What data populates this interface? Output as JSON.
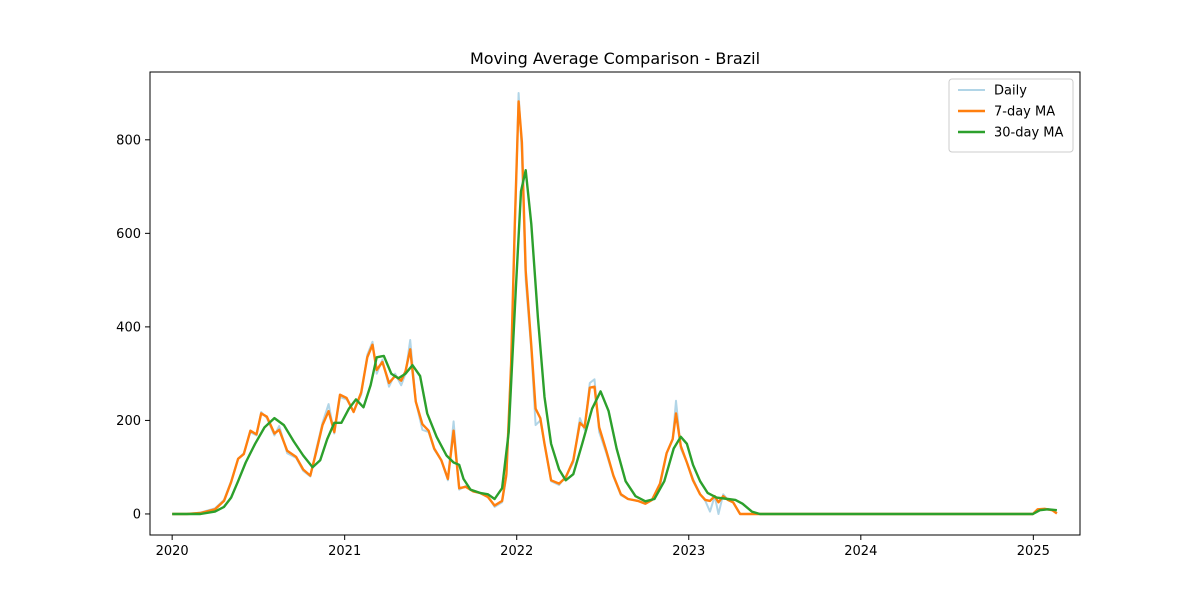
{
  "chart_data": {
    "type": "line",
    "title": "Moving Average Comparison - Brazil",
    "xlabel": "",
    "ylabel": "",
    "x_axis": {
      "ticks": [
        "2020",
        "2021",
        "2022",
        "2023",
        "2024",
        "2025"
      ],
      "range": [
        "2019-11-15",
        "2025-04-10"
      ]
    },
    "y_axis": {
      "ticks": [
        0,
        200,
        400,
        600,
        800
      ],
      "range": [
        -45,
        945
      ]
    },
    "grid": false,
    "legend": {
      "placement": "top-right",
      "entries": [
        "Daily",
        "7-day MA",
        "30-day MA"
      ]
    },
    "series": [
      {
        "name": "Daily",
        "color": "#9ecae1",
        "points": [
          [
            "2020-01-01",
            0
          ],
          [
            "2020-02-01",
            0
          ],
          [
            "2020-03-01",
            3
          ],
          [
            "2020-04-01",
            12
          ],
          [
            "2020-04-20",
            30
          ],
          [
            "2020-05-05",
            70
          ],
          [
            "2020-05-20",
            118
          ],
          [
            "2020-06-01",
            130
          ],
          [
            "2020-06-15",
            175
          ],
          [
            "2020-06-28",
            168
          ],
          [
            "2020-07-08",
            218
          ],
          [
            "2020-07-20",
            205
          ],
          [
            "2020-08-05",
            168
          ],
          [
            "2020-08-15",
            188
          ],
          [
            "2020-09-01",
            130
          ],
          [
            "2020-09-20",
            120
          ],
          [
            "2020-10-05",
            92
          ],
          [
            "2020-10-20",
            80
          ],
          [
            "2020-11-01",
            135
          ],
          [
            "2020-11-15",
            195
          ],
          [
            "2020-11-28",
            235
          ],
          [
            "2020-12-10",
            172
          ],
          [
            "2020-12-22",
            250
          ],
          [
            "2021-01-05",
            245
          ],
          [
            "2021-01-20",
            220
          ],
          [
            "2021-02-05",
            255
          ],
          [
            "2021-02-18",
            340
          ],
          [
            "2021-03-01",
            368
          ],
          [
            "2021-03-10",
            300
          ],
          [
            "2021-03-22",
            330
          ],
          [
            "2021-04-05",
            272
          ],
          [
            "2021-04-18",
            300
          ],
          [
            "2021-05-01",
            275
          ],
          [
            "2021-05-10",
            300
          ],
          [
            "2021-05-20",
            372
          ],
          [
            "2021-06-01",
            240
          ],
          [
            "2021-06-15",
            180
          ],
          [
            "2021-06-28",
            175
          ],
          [
            "2021-07-10",
            138
          ],
          [
            "2021-07-25",
            115
          ],
          [
            "2021-08-08",
            72
          ],
          [
            "2021-08-20",
            198
          ],
          [
            "2021-09-01",
            52
          ],
          [
            "2021-09-15",
            60
          ],
          [
            "2021-10-01",
            48
          ],
          [
            "2021-10-15",
            45
          ],
          [
            "2021-11-01",
            38
          ],
          [
            "2021-11-15",
            15
          ],
          [
            "2021-12-01",
            25
          ],
          [
            "2021-12-10",
            80
          ],
          [
            "2021-12-20",
            320
          ],
          [
            "2021-12-28",
            600
          ],
          [
            "2022-01-05",
            900
          ],
          [
            "2022-01-12",
            770
          ],
          [
            "2022-01-20",
            500
          ],
          [
            "2022-02-01",
            350
          ],
          [
            "2022-02-10",
            190
          ],
          [
            "2022-02-20",
            200
          ],
          [
            "2022-03-01",
            150
          ],
          [
            "2022-03-15",
            70
          ],
          [
            "2022-04-01",
            62
          ],
          [
            "2022-04-15",
            80
          ],
          [
            "2022-05-01",
            110
          ],
          [
            "2022-05-15",
            205
          ],
          [
            "2022-05-25",
            180
          ],
          [
            "2022-06-05",
            280
          ],
          [
            "2022-06-15",
            288
          ],
          [
            "2022-06-25",
            175
          ],
          [
            "2022-07-10",
            130
          ],
          [
            "2022-07-25",
            80
          ],
          [
            "2022-08-10",
            40
          ],
          [
            "2022-08-25",
            32
          ],
          [
            "2022-09-15",
            28
          ],
          [
            "2022-10-01",
            22
          ],
          [
            "2022-10-15",
            30
          ],
          [
            "2022-11-01",
            60
          ],
          [
            "2022-11-15",
            130
          ],
          [
            "2022-11-28",
            160
          ],
          [
            "2022-12-05",
            242
          ],
          [
            "2022-12-15",
            140
          ],
          [
            "2022-12-28",
            110
          ],
          [
            "2023-01-10",
            75
          ],
          [
            "2023-01-25",
            42
          ],
          [
            "2023-02-05",
            28
          ],
          [
            "2023-02-15",
            5
          ],
          [
            "2023-02-25",
            38
          ],
          [
            "2023-03-05",
            0
          ],
          [
            "2023-03-15",
            42
          ],
          [
            "2023-03-25",
            30
          ],
          [
            "2023-04-05",
            25
          ],
          [
            "2023-04-20",
            0
          ],
          [
            "2023-05-15",
            0
          ],
          [
            "2024-12-31",
            0
          ],
          [
            "2025-01-10",
            8
          ],
          [
            "2025-01-25",
            10
          ],
          [
            "2025-02-10",
            8
          ],
          [
            "2025-02-20",
            2
          ]
        ]
      },
      {
        "name": "7-day MA",
        "color": "#ff7f0e",
        "points": [
          [
            "2020-01-01",
            0
          ],
          [
            "2020-02-01",
            0
          ],
          [
            "2020-03-01",
            2
          ],
          [
            "2020-04-01",
            10
          ],
          [
            "2020-04-20",
            28
          ],
          [
            "2020-05-05",
            68
          ],
          [
            "2020-05-20",
            118
          ],
          [
            "2020-06-01",
            128
          ],
          [
            "2020-06-15",
            178
          ],
          [
            "2020-06-28",
            170
          ],
          [
            "2020-07-08",
            215
          ],
          [
            "2020-07-20",
            208
          ],
          [
            "2020-08-05",
            172
          ],
          [
            "2020-08-15",
            180
          ],
          [
            "2020-09-01",
            135
          ],
          [
            "2020-09-20",
            122
          ],
          [
            "2020-10-05",
            95
          ],
          [
            "2020-10-20",
            82
          ],
          [
            "2020-11-01",
            130
          ],
          [
            "2020-11-15",
            190
          ],
          [
            "2020-11-28",
            220
          ],
          [
            "2020-12-10",
            175
          ],
          [
            "2020-12-22",
            255
          ],
          [
            "2021-01-05",
            248
          ],
          [
            "2021-01-20",
            218
          ],
          [
            "2021-02-05",
            260
          ],
          [
            "2021-02-18",
            335
          ],
          [
            "2021-03-01",
            362
          ],
          [
            "2021-03-10",
            308
          ],
          [
            "2021-03-22",
            325
          ],
          [
            "2021-04-05",
            280
          ],
          [
            "2021-04-18",
            295
          ],
          [
            "2021-05-01",
            285
          ],
          [
            "2021-05-10",
            305
          ],
          [
            "2021-05-20",
            352
          ],
          [
            "2021-06-01",
            240
          ],
          [
            "2021-06-15",
            192
          ],
          [
            "2021-06-28",
            178
          ],
          [
            "2021-07-10",
            140
          ],
          [
            "2021-07-25",
            115
          ],
          [
            "2021-08-08",
            75
          ],
          [
            "2021-08-20",
            178
          ],
          [
            "2021-09-01",
            55
          ],
          [
            "2021-09-15",
            58
          ],
          [
            "2021-10-01",
            48
          ],
          [
            "2021-10-15",
            45
          ],
          [
            "2021-11-01",
            36
          ],
          [
            "2021-11-15",
            18
          ],
          [
            "2021-12-01",
            28
          ],
          [
            "2021-12-10",
            85
          ],
          [
            "2021-12-20",
            320
          ],
          [
            "2021-12-28",
            620
          ],
          [
            "2022-01-05",
            882
          ],
          [
            "2022-01-12",
            795
          ],
          [
            "2022-01-20",
            520
          ],
          [
            "2022-02-01",
            360
          ],
          [
            "2022-02-10",
            225
          ],
          [
            "2022-02-20",
            205
          ],
          [
            "2022-03-01",
            150
          ],
          [
            "2022-03-15",
            72
          ],
          [
            "2022-04-01",
            65
          ],
          [
            "2022-04-15",
            78
          ],
          [
            "2022-05-01",
            115
          ],
          [
            "2022-05-15",
            195
          ],
          [
            "2022-05-25",
            185
          ],
          [
            "2022-06-05",
            270
          ],
          [
            "2022-06-15",
            272
          ],
          [
            "2022-06-25",
            185
          ],
          [
            "2022-07-10",
            135
          ],
          [
            "2022-07-25",
            82
          ],
          [
            "2022-08-10",
            42
          ],
          [
            "2022-08-25",
            32
          ],
          [
            "2022-09-15",
            28
          ],
          [
            "2022-10-01",
            22
          ],
          [
            "2022-10-15",
            30
          ],
          [
            "2022-11-01",
            65
          ],
          [
            "2022-11-15",
            130
          ],
          [
            "2022-11-28",
            160
          ],
          [
            "2022-12-05",
            215
          ],
          [
            "2022-12-15",
            145
          ],
          [
            "2022-12-28",
            110
          ],
          [
            "2023-01-10",
            72
          ],
          [
            "2023-01-25",
            42
          ],
          [
            "2023-02-05",
            30
          ],
          [
            "2023-02-15",
            28
          ],
          [
            "2023-02-25",
            38
          ],
          [
            "2023-03-05",
            25
          ],
          [
            "2023-03-15",
            38
          ],
          [
            "2023-03-25",
            30
          ],
          [
            "2023-04-05",
            25
          ],
          [
            "2023-04-20",
            0
          ],
          [
            "2023-05-15",
            0
          ],
          [
            "2024-12-31",
            0
          ],
          [
            "2025-01-10",
            10
          ],
          [
            "2025-01-25",
            11
          ],
          [
            "2025-02-10",
            8
          ],
          [
            "2025-02-20",
            1
          ]
        ]
      },
      {
        "name": "30-day MA",
        "color": "#2ca02c",
        "points": [
          [
            "2020-01-01",
            0
          ],
          [
            "2020-03-01",
            0
          ],
          [
            "2020-04-01",
            5
          ],
          [
            "2020-04-20",
            15
          ],
          [
            "2020-05-05",
            35
          ],
          [
            "2020-05-20",
            70
          ],
          [
            "2020-06-05",
            110
          ],
          [
            "2020-06-25",
            150
          ],
          [
            "2020-07-15",
            185
          ],
          [
            "2020-08-05",
            205
          ],
          [
            "2020-08-25",
            190
          ],
          [
            "2020-09-15",
            155
          ],
          [
            "2020-10-05",
            125
          ],
          [
            "2020-10-25",
            100
          ],
          [
            "2020-11-10",
            115
          ],
          [
            "2020-11-25",
            160
          ],
          [
            "2020-12-10",
            195
          ],
          [
            "2020-12-25",
            195
          ],
          [
            "2021-01-10",
            225
          ],
          [
            "2021-01-25",
            245
          ],
          [
            "2021-02-10",
            228
          ],
          [
            "2021-02-25",
            275
          ],
          [
            "2021-03-10",
            335
          ],
          [
            "2021-03-25",
            338
          ],
          [
            "2021-04-10",
            300
          ],
          [
            "2021-04-25",
            290
          ],
          [
            "2021-05-10",
            300
          ],
          [
            "2021-05-25",
            318
          ],
          [
            "2021-06-10",
            295
          ],
          [
            "2021-06-25",
            215
          ],
          [
            "2021-07-15",
            165
          ],
          [
            "2021-08-05",
            125
          ],
          [
            "2021-08-20",
            110
          ],
          [
            "2021-09-01",
            105
          ],
          [
            "2021-09-10",
            75
          ],
          [
            "2021-09-25",
            52
          ],
          [
            "2021-10-15",
            45
          ],
          [
            "2021-11-01",
            42
          ],
          [
            "2021-11-15",
            32
          ],
          [
            "2021-12-01",
            55
          ],
          [
            "2021-12-15",
            175
          ],
          [
            "2021-12-30",
            480
          ],
          [
            "2022-01-10",
            690
          ],
          [
            "2022-01-20",
            735
          ],
          [
            "2022-02-01",
            620
          ],
          [
            "2022-02-15",
            420
          ],
          [
            "2022-03-01",
            250
          ],
          [
            "2022-03-15",
            150
          ],
          [
            "2022-04-01",
            95
          ],
          [
            "2022-04-15",
            72
          ],
          [
            "2022-05-01",
            85
          ],
          [
            "2022-05-20",
            150
          ],
          [
            "2022-06-10",
            225
          ],
          [
            "2022-06-28",
            262
          ],
          [
            "2022-07-15",
            220
          ],
          [
            "2022-08-01",
            140
          ],
          [
            "2022-08-20",
            70
          ],
          [
            "2022-09-10",
            38
          ],
          [
            "2022-10-01",
            27
          ],
          [
            "2022-10-20",
            32
          ],
          [
            "2022-11-10",
            70
          ],
          [
            "2022-11-30",
            140
          ],
          [
            "2022-12-15",
            165
          ],
          [
            "2022-12-28",
            150
          ],
          [
            "2023-01-10",
            105
          ],
          [
            "2023-01-25",
            70
          ],
          [
            "2023-02-10",
            45
          ],
          [
            "2023-03-01",
            35
          ],
          [
            "2023-03-25",
            32
          ],
          [
            "2023-04-10",
            30
          ],
          [
            "2023-04-25",
            22
          ],
          [
            "2023-05-15",
            5
          ],
          [
            "2023-06-01",
            0
          ],
          [
            "2024-12-31",
            0
          ],
          [
            "2025-01-15",
            8
          ],
          [
            "2025-02-01",
            10
          ],
          [
            "2025-02-20",
            8
          ]
        ]
      }
    ]
  }
}
